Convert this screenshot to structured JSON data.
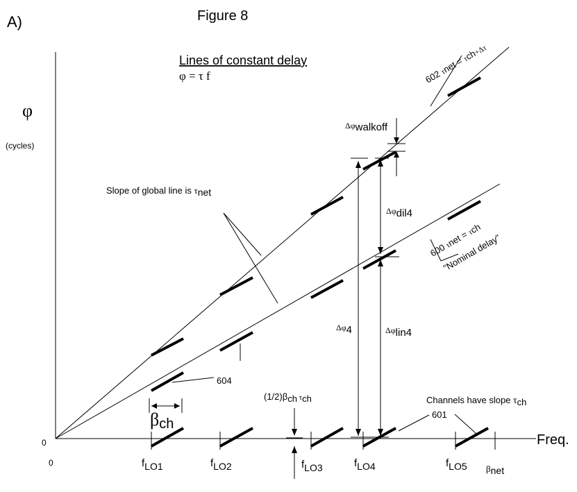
{
  "panel_label": "A)",
  "figure_title": "Figure 8",
  "axes": {
    "y_symbol": "φ",
    "y_units": "(cycles)",
    "x_label": "Freq.",
    "origin_y": "0",
    "origin_x": "0"
  },
  "heading": {
    "title": "Lines of constant delay",
    "equation": "φ = τ f"
  },
  "line_labels": {
    "upper": {
      "ref": "602",
      "sym1": "τ",
      "sub1": "net",
      "eq": " = ",
      "sym2": "τ",
      "sub2": "ch",
      "plus": "+Δτ"
    },
    "lower": {
      "ref": "600",
      "sym1": "τ",
      "sub1": "net",
      "eq": " = ",
      "sym2": "τ",
      "sub2": "ch",
      "note": "\"Nominal delay\""
    }
  },
  "annotations": {
    "slope_global": "Slope of global line is ",
    "slope_sym": "τ",
    "slope_sub": "net",
    "walkoff_delta": "Δφ",
    "walkoff_sub": "walkoff",
    "dil_delta": "Δφ",
    "dil_sub": "dil4",
    "total_delta": "Δφ",
    "total_sub": "4",
    "lin_delta": "Δφ",
    "lin_sub": "lin4",
    "channels_slope": "Channels have slope ",
    "channels_sym": "τ",
    "channels_sub": "ch",
    "ref_601": "601",
    "ref_604": "604",
    "half_beta": "(1/2)β",
    "half_beta_sub": "ch",
    "half_tau": " τ",
    "half_tau_sub": "ch",
    "beta_ch": "β",
    "beta_ch_sub": "ch"
  },
  "x_ticks": [
    {
      "main": "f",
      "sub": "LO1"
    },
    {
      "main": "f",
      "sub": "LO2"
    },
    {
      "main": "f",
      "sub": "LO3"
    },
    {
      "main": "f",
      "sub": "LO4"
    },
    {
      "main": "f",
      "sub": "LO5"
    },
    {
      "main": "β",
      "sub": "net"
    }
  ]
}
